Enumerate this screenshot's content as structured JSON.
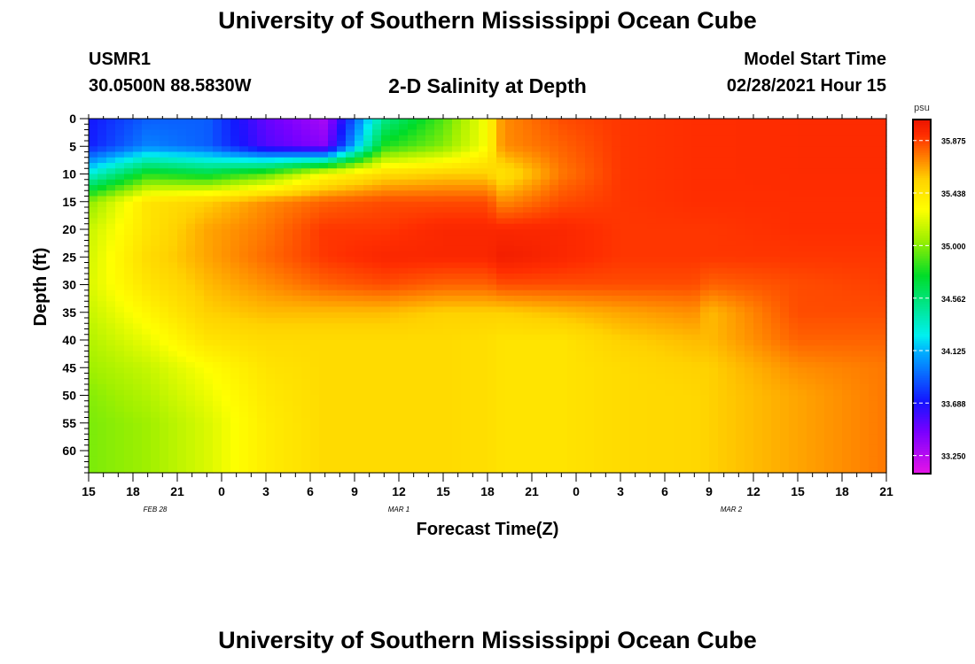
{
  "header": {
    "title": "University of Southern Mississippi Ocean Cube",
    "station_id": "USMR1",
    "coords": "30.0500N 88.5830W",
    "chart_title": "2-D Salinity at Depth",
    "start_label": "Model Start Time",
    "start_value": "02/28/2021 Hour 15"
  },
  "footer": {
    "title": "University of Southern Mississippi Ocean Cube"
  },
  "chart_data": {
    "type": "heatmap",
    "title": "2-D Salinity at Depth",
    "xlabel": "Forecast Time(Z)",
    "ylabel": "Depth (ft)",
    "x_ticks": [
      "15",
      "18",
      "21",
      "0",
      "3",
      "6",
      "9",
      "12",
      "15",
      "18",
      "21",
      "0",
      "3",
      "6",
      "9",
      "12",
      "15",
      "18",
      "21"
    ],
    "x_range_hours": [
      0,
      54
    ],
    "date_labels": [
      {
        "label": "FEB 28",
        "hour": 4.5
      },
      {
        "label": "MAR 1",
        "hour": 21
      },
      {
        "label": "MAR 2",
        "hour": 43.5
      }
    ],
    "y_ticks": [
      0,
      5,
      10,
      15,
      20,
      25,
      30,
      35,
      40,
      45,
      50,
      55,
      60
    ],
    "ylim": [
      0,
      64
    ],
    "y_inverted": true,
    "colorbar": {
      "unit": "psu",
      "ticks": [
        "35.875",
        "35.438",
        "35.000",
        "34.562",
        "34.125",
        "33.688",
        "33.250"
      ],
      "range": [
        33.1,
        36.05
      ]
    },
    "profile_hours": [
      0,
      4,
      8,
      12,
      16,
      20,
      24,
      27,
      28,
      32,
      36,
      41,
      42,
      48,
      54
    ],
    "profile_depths": [
      0,
      5,
      10,
      15,
      20,
      25,
      30,
      35,
      40,
      45,
      50,
      55,
      60,
      64
    ],
    "profiles": [
      [
        33.7,
        33.72,
        34.3,
        35.0,
        35.15,
        35.18,
        35.2,
        35.15,
        35.1,
        35.05,
        35.0,
        34.98,
        34.98,
        34.98
      ],
      [
        33.9,
        34.0,
        34.8,
        35.45,
        35.45,
        35.5,
        35.45,
        35.35,
        35.25,
        35.15,
        35.1,
        35.05,
        35.05,
        35.05
      ],
      [
        33.9,
        33.9,
        34.7,
        35.55,
        35.65,
        35.65,
        35.6,
        35.55,
        35.45,
        35.3,
        35.25,
        35.2,
        35.2,
        35.2
      ],
      [
        33.5,
        33.55,
        34.9,
        35.7,
        35.75,
        35.78,
        35.7,
        35.6,
        35.5,
        35.45,
        35.42,
        35.4,
        35.4,
        35.4
      ],
      [
        33.3,
        33.4,
        35.3,
        35.8,
        35.9,
        35.9,
        35.8,
        35.6,
        35.5,
        35.5,
        35.5,
        35.5,
        35.5,
        35.5
      ],
      [
        34.5,
        34.8,
        35.5,
        35.85,
        35.9,
        35.95,
        35.85,
        35.6,
        35.5,
        35.5,
        35.5,
        35.5,
        35.5,
        35.5
      ],
      [
        34.9,
        35.0,
        35.55,
        35.85,
        35.95,
        35.95,
        35.8,
        35.55,
        35.5,
        35.5,
        35.5,
        35.5,
        35.5,
        35.5
      ],
      [
        35.3,
        35.3,
        35.55,
        35.85,
        35.95,
        35.95,
        35.8,
        35.55,
        35.48,
        35.48,
        35.48,
        35.48,
        35.48,
        35.48
      ],
      [
        35.7,
        35.7,
        35.45,
        35.7,
        35.95,
        36.0,
        35.85,
        35.55,
        35.45,
        35.45,
        35.45,
        35.45,
        35.45,
        35.45
      ],
      [
        35.85,
        35.8,
        35.75,
        35.85,
        35.95,
        35.95,
        35.85,
        35.6,
        35.45,
        35.45,
        35.45,
        35.45,
        35.45,
        35.45
      ],
      [
        35.9,
        35.9,
        35.9,
        35.9,
        35.9,
        35.9,
        35.85,
        35.65,
        35.55,
        35.5,
        35.5,
        35.5,
        35.5,
        35.5
      ],
      [
        35.92,
        35.92,
        35.92,
        35.92,
        35.9,
        35.9,
        35.85,
        35.7,
        35.6,
        35.55,
        35.52,
        35.52,
        35.52,
        35.52
      ],
      [
        35.92,
        35.92,
        35.92,
        35.92,
        35.9,
        35.9,
        35.8,
        35.6,
        35.6,
        35.55,
        35.55,
        35.55,
        35.55,
        35.55
      ],
      [
        35.93,
        35.93,
        35.93,
        35.92,
        35.92,
        35.9,
        35.85,
        35.85,
        35.8,
        35.7,
        35.65,
        35.65,
        35.65,
        35.65
      ],
      [
        35.93,
        35.93,
        35.93,
        35.92,
        35.92,
        35.9,
        35.88,
        35.85,
        35.8,
        35.75,
        35.75,
        35.75,
        35.75,
        35.75
      ]
    ]
  }
}
